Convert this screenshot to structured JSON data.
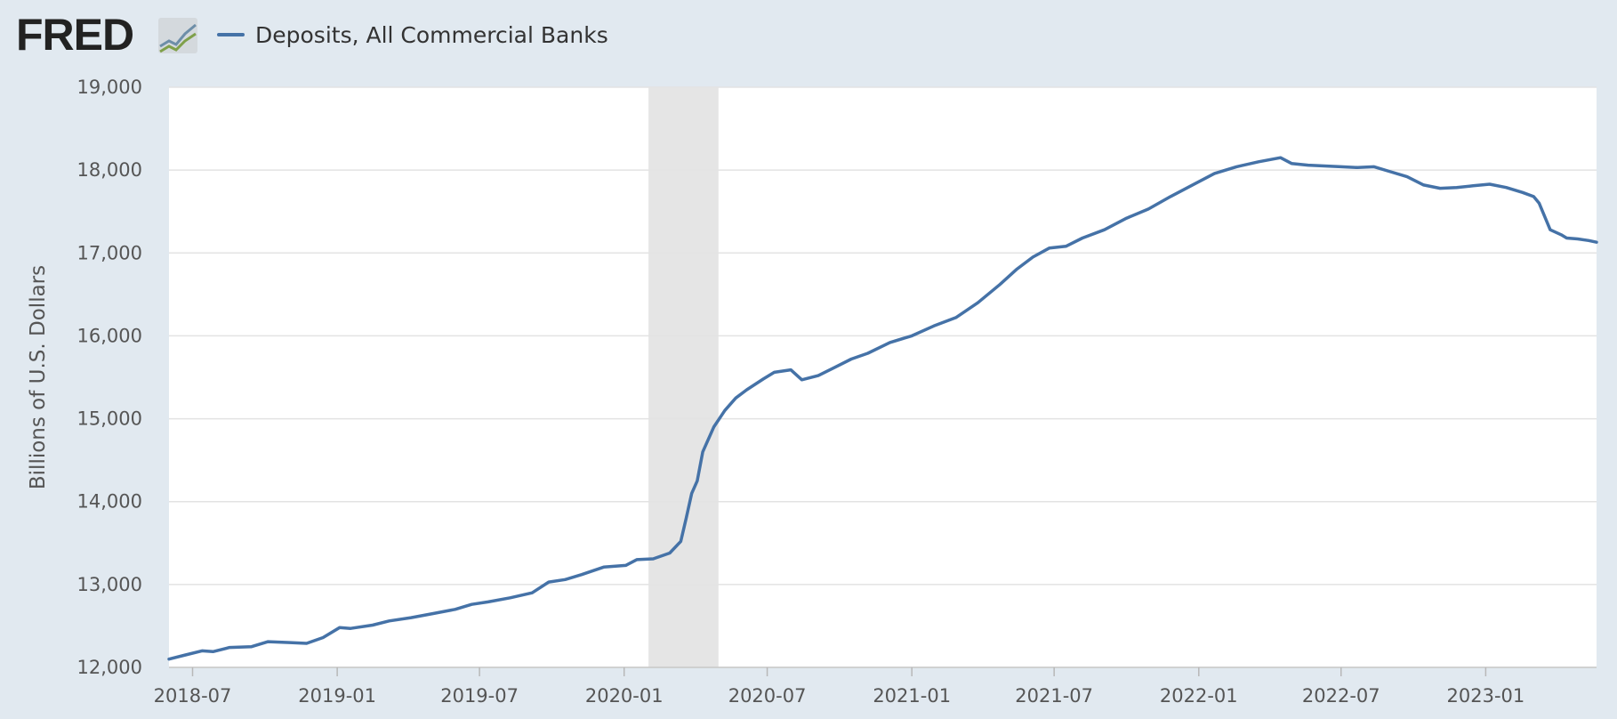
{
  "app": {
    "logo_text": "FRED"
  },
  "legend": {
    "series_label": "Deposits, All Commercial Banks",
    "swatch_color": "#4572a7"
  },
  "chart_data": {
    "type": "line",
    "ylabel": "Billions of U.S. Dollars",
    "xlabel": "",
    "ylim": [
      12000,
      19000
    ],
    "xlim": [
      "2018-06-01",
      "2023-05-22"
    ],
    "y_ticks": [
      12000,
      13000,
      14000,
      15000,
      16000,
      17000,
      18000,
      19000
    ],
    "y_tick_labels": [
      "12,000",
      "13,000",
      "14,000",
      "15,000",
      "16,000",
      "17,000",
      "18,000",
      "19,000"
    ],
    "x_ticks": [
      "2018-07-01",
      "2019-01-01",
      "2019-07-01",
      "2020-01-01",
      "2020-07-01",
      "2021-01-01",
      "2021-07-01",
      "2022-01-01",
      "2022-07-01",
      "2023-01-01"
    ],
    "x_tick_labels": [
      "2018-07",
      "2019-01",
      "2019-07",
      "2020-01",
      "2020-07",
      "2021-01",
      "2021-07",
      "2022-01",
      "2022-07",
      "2023-01"
    ],
    "grid": "horizontal",
    "recession": {
      "start": "2020-02-01",
      "end": "2020-04-30",
      "color": "#e5e5e5"
    },
    "colors": {
      "line": "#4572a7",
      "plot_background": "#ffffff",
      "page_background": "#e1e9f0"
    },
    "series": [
      {
        "name": "Deposits, All Commercial Banks",
        "points": [
          [
            "2018-06-01",
            12100
          ],
          [
            "2018-06-22",
            12150
          ],
          [
            "2018-07-13",
            12200
          ],
          [
            "2018-07-27",
            12190
          ],
          [
            "2018-08-17",
            12240
          ],
          [
            "2018-09-14",
            12250
          ],
          [
            "2018-10-05",
            12310
          ],
          [
            "2018-11-02",
            12300
          ],
          [
            "2018-11-23",
            12290
          ],
          [
            "2018-12-14",
            12360
          ],
          [
            "2019-01-04",
            12480
          ],
          [
            "2019-01-18",
            12470
          ],
          [
            "2019-02-15",
            12510
          ],
          [
            "2019-03-08",
            12560
          ],
          [
            "2019-04-05",
            12600
          ],
          [
            "2019-05-03",
            12650
          ],
          [
            "2019-05-31",
            12700
          ],
          [
            "2019-06-21",
            12760
          ],
          [
            "2019-07-12",
            12790
          ],
          [
            "2019-08-09",
            12840
          ],
          [
            "2019-09-06",
            12900
          ],
          [
            "2019-09-27",
            13030
          ],
          [
            "2019-10-18",
            13060
          ],
          [
            "2019-11-08",
            13120
          ],
          [
            "2019-12-06",
            13210
          ],
          [
            "2020-01-03",
            13230
          ],
          [
            "2020-01-17",
            13300
          ],
          [
            "2020-02-07",
            13310
          ],
          [
            "2020-02-28",
            13380
          ],
          [
            "2020-03-13",
            13520
          ],
          [
            "2020-03-20",
            13800
          ],
          [
            "2020-03-27",
            14100
          ],
          [
            "2020-04-03",
            14250
          ],
          [
            "2020-04-10",
            14600
          ],
          [
            "2020-04-24",
            14900
          ],
          [
            "2020-05-08",
            15100
          ],
          [
            "2020-05-22",
            15250
          ],
          [
            "2020-06-05",
            15350
          ],
          [
            "2020-06-26",
            15480
          ],
          [
            "2020-07-10",
            15560
          ],
          [
            "2020-07-31",
            15590
          ],
          [
            "2020-08-14",
            15470
          ],
          [
            "2020-09-04",
            15520
          ],
          [
            "2020-09-25",
            15620
          ],
          [
            "2020-10-16",
            15720
          ],
          [
            "2020-11-06",
            15790
          ],
          [
            "2020-12-04",
            15920
          ],
          [
            "2021-01-01",
            16000
          ],
          [
            "2021-01-29",
            16120
          ],
          [
            "2021-02-26",
            16220
          ],
          [
            "2021-03-26",
            16400
          ],
          [
            "2021-04-23",
            16620
          ],
          [
            "2021-05-14",
            16800
          ],
          [
            "2021-06-04",
            16950
          ],
          [
            "2021-06-25",
            17060
          ],
          [
            "2021-07-16",
            17080
          ],
          [
            "2021-08-06",
            17180
          ],
          [
            "2021-09-03",
            17280
          ],
          [
            "2021-10-01",
            17420
          ],
          [
            "2021-10-29",
            17530
          ],
          [
            "2021-11-26",
            17680
          ],
          [
            "2021-12-24",
            17820
          ],
          [
            "2022-01-21",
            17960
          ],
          [
            "2022-02-18",
            18040
          ],
          [
            "2022-03-18",
            18100
          ],
          [
            "2022-04-15",
            18150
          ],
          [
            "2022-04-29",
            18080
          ],
          [
            "2022-05-20",
            18060
          ],
          [
            "2022-06-10",
            18050
          ],
          [
            "2022-07-01",
            18040
          ],
          [
            "2022-07-22",
            18030
          ],
          [
            "2022-08-12",
            18040
          ],
          [
            "2022-09-02",
            17980
          ],
          [
            "2022-09-23",
            17920
          ],
          [
            "2022-10-14",
            17820
          ],
          [
            "2022-11-04",
            17780
          ],
          [
            "2022-11-25",
            17790
          ],
          [
            "2022-12-16",
            17810
          ],
          [
            "2023-01-06",
            17830
          ],
          [
            "2023-01-27",
            17790
          ],
          [
            "2023-02-17",
            17730
          ],
          [
            "2023-03-03",
            17680
          ],
          [
            "2023-03-10",
            17600
          ],
          [
            "2023-03-24",
            17280
          ],
          [
            "2023-04-07",
            17220
          ],
          [
            "2023-04-14",
            17180
          ],
          [
            "2023-04-28",
            17170
          ],
          [
            "2023-05-12",
            17150
          ],
          [
            "2023-05-22",
            17130
          ]
        ]
      }
    ]
  }
}
